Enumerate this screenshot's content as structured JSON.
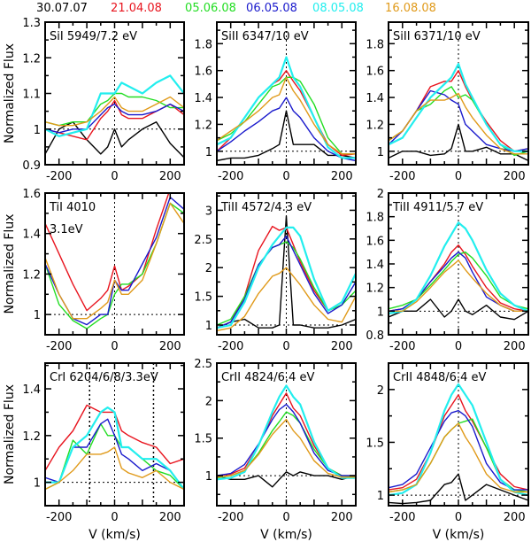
{
  "legend": [
    {
      "label": "30.07.07",
      "color": "#000000"
    },
    {
      "label": "21.04.08",
      "color": "#e8141e"
    },
    {
      "label": "05.06.08",
      "color": "#22dd22"
    },
    {
      "label": "06.05.08",
      "color": "#1a1acc"
    },
    {
      "label": "08.05.08",
      "color": "#22eeee"
    },
    {
      "label": "16.08.08",
      "color": "#e09a1a"
    }
  ],
  "chart_data": {
    "type": "line",
    "ylabel": "Normalized Flux",
    "xlabel": "V (km/s)",
    "xlim": [
      -250,
      250
    ],
    "x_ticks": [
      -200,
      0,
      200
    ],
    "x": [
      -250,
      -200,
      -150,
      -100,
      -50,
      -25,
      0,
      25,
      50,
      100,
      150,
      200,
      250
    ],
    "series_names": [
      "30.07.07",
      "21.04.08",
      "05.06.08",
      "06.05.08",
      "08.05.08",
      "16.08.08"
    ],
    "panels": [
      {
        "label": "SiI 5949/7.2 eV",
        "ylim": [
          0.9,
          1.3
        ],
        "y_ticks": [
          0.9,
          1,
          1.1,
          1.2,
          1.3
        ],
        "series": {
          "30.07.07": [
            0.93,
            1.0,
            1.02,
            0.97,
            0.93,
            0.95,
            1.0,
            0.95,
            0.97,
            1.0,
            1.02,
            0.96,
            0.92
          ],
          "21.04.08": [
            1.0,
            0.99,
            0.98,
            0.97,
            1.03,
            1.05,
            1.08,
            1.04,
            1.03,
            1.03,
            1.05,
            1.07,
            1.04
          ],
          "05.06.08": [
            1.02,
            1.01,
            1.02,
            1.02,
            1.07,
            1.08,
            1.1,
            1.1,
            1.09,
            1.09,
            1.08,
            1.06,
            1.06
          ],
          "06.05.08": [
            1.0,
            0.99,
            1.0,
            1.0,
            1.04,
            1.06,
            1.07,
            1.05,
            1.04,
            1.04,
            1.05,
            1.07,
            1.05
          ],
          "08.05.08": [
            1.0,
            0.98,
            0.99,
            1.0,
            1.1,
            1.1,
            1.1,
            1.13,
            1.12,
            1.1,
            1.13,
            1.15,
            1.1
          ],
          "16.08.08": [
            1.02,
            1.01,
            1.01,
            1.02,
            1.05,
            1.07,
            1.09,
            1.06,
            1.05,
            1.05,
            1.07,
            1.09,
            1.06
          ]
        }
      },
      {
        "label": "SiII 6347/10 eV",
        "ylim": [
          0.9,
          1.96
        ],
        "y_ticks": [
          1,
          1.2,
          1.4,
          1.6,
          1.8
        ],
        "series": {
          "30.07.07": [
            0.93,
            0.95,
            0.95,
            0.97,
            1.02,
            1.05,
            1.3,
            1.05,
            1.05,
            1.05,
            0.97,
            0.97,
            0.95
          ],
          "21.04.08": [
            1.0,
            1.1,
            1.25,
            1.4,
            1.5,
            1.53,
            1.6,
            1.52,
            1.45,
            1.25,
            1.05,
            0.97,
            0.98
          ],
          "05.06.08": [
            1.08,
            1.13,
            1.22,
            1.35,
            1.48,
            1.5,
            1.55,
            1.55,
            1.52,
            1.35,
            1.1,
            0.98,
            0.98
          ],
          "06.05.08": [
            1.0,
            1.07,
            1.15,
            1.22,
            1.3,
            1.32,
            1.4,
            1.3,
            1.25,
            1.1,
            1.0,
            0.95,
            0.93
          ],
          "08.05.08": [
            1.05,
            1.1,
            1.25,
            1.4,
            1.5,
            1.55,
            1.7,
            1.55,
            1.48,
            1.25,
            1.03,
            0.95,
            0.95
          ],
          "16.08.08": [
            1.08,
            1.15,
            1.22,
            1.3,
            1.4,
            1.42,
            1.55,
            1.45,
            1.38,
            1.2,
            1.05,
            0.98,
            0.98
          ]
        }
      },
      {
        "label": "SiII 6371/10 eV",
        "ylim": [
          0.9,
          1.96
        ],
        "y_ticks": [
          1,
          1.2,
          1.4,
          1.6,
          1.8
        ],
        "series": {
          "30.07.07": [
            0.95,
            1.0,
            1.0,
            0.97,
            0.98,
            1.02,
            1.2,
            1.0,
            1.0,
            1.03,
            0.98,
            0.98,
            0.93
          ],
          "21.04.08": [
            1.08,
            1.15,
            1.3,
            1.48,
            1.52,
            1.52,
            1.6,
            1.48,
            1.38,
            1.22,
            1.08,
            1.0,
            1.02
          ],
          "05.06.08": [
            1.08,
            1.15,
            1.3,
            1.35,
            1.45,
            1.48,
            1.4,
            1.42,
            1.38,
            1.2,
            1.05,
            0.97,
            1.0
          ],
          "06.05.08": [
            1.05,
            1.15,
            1.3,
            1.45,
            1.42,
            1.38,
            1.35,
            1.2,
            1.15,
            1.05,
            1.02,
            1.0,
            1.02
          ],
          "08.05.08": [
            1.05,
            1.1,
            1.25,
            1.4,
            1.5,
            1.55,
            1.65,
            1.5,
            1.4,
            1.2,
            1.05,
            1.0,
            1.0
          ],
          "16.08.08": [
            1.08,
            1.15,
            1.3,
            1.38,
            1.38,
            1.4,
            1.43,
            1.33,
            1.25,
            1.12,
            1.02,
            0.98,
            0.98
          ]
        }
      },
      {
        "label": "TiI 4010",
        "sublabel": "3.1eV",
        "ylim": [
          0.9,
          1.6
        ],
        "y_ticks": [
          1,
          1.2,
          1.4,
          1.6
        ],
        "series": {
          "21.04.08": [
            1.45,
            1.3,
            1.15,
            1.02,
            1.08,
            1.12,
            1.24,
            1.12,
            1.14,
            1.2,
            1.42,
            1.62,
            1.62
          ],
          "05.06.08": [
            1.25,
            1.05,
            0.97,
            0.93,
            0.98,
            1.0,
            1.1,
            1.15,
            1.15,
            1.2,
            1.35,
            1.55,
            1.5
          ],
          "06.05.08": [
            1.25,
            1.1,
            0.98,
            0.95,
            1.0,
            1.0,
            1.17,
            1.12,
            1.12,
            1.25,
            1.38,
            1.58,
            1.52
          ],
          "16.08.08": [
            1.28,
            1.1,
            0.98,
            0.98,
            1.03,
            1.06,
            1.17,
            1.1,
            1.1,
            1.17,
            1.35,
            1.55,
            1.45
          ]
        }
      },
      {
        "label": "TiII 4572/4.3 eV",
        "ylim": [
          0.83,
          3.3
        ],
        "y_ticks": [
          1,
          1.5,
          2,
          2.5,
          3
        ],
        "series": {
          "30.07.07": [
            0.95,
            1.05,
            1.1,
            0.95,
            0.95,
            1.0,
            2.9,
            1.0,
            1.0,
            0.95,
            0.95,
            1.0,
            1.1
          ],
          "21.04.08": [
            0.95,
            1.05,
            1.5,
            2.3,
            2.72,
            2.65,
            2.7,
            2.4,
            2.1,
            1.6,
            1.25,
            1.4,
            1.9
          ],
          "05.06.08": [
            1.0,
            1.1,
            1.5,
            2.05,
            2.35,
            2.4,
            2.45,
            2.35,
            2.15,
            1.65,
            1.25,
            1.35,
            1.6
          ],
          "06.05.08": [
            0.95,
            1.05,
            1.45,
            2.05,
            2.35,
            2.4,
            2.55,
            2.3,
            2.05,
            1.55,
            1.2,
            1.35,
            1.75
          ],
          "08.05.08": [
            0.95,
            1.0,
            1.4,
            2.0,
            2.4,
            2.55,
            2.7,
            2.7,
            2.55,
            1.8,
            1.25,
            1.4,
            1.9
          ],
          "16.08.08": [
            0.9,
            0.95,
            1.15,
            1.55,
            1.85,
            1.9,
            2.0,
            1.85,
            1.7,
            1.35,
            1.1,
            1.05,
            1.5
          ]
        }
      },
      {
        "label": "TiII 4911/5.7 eV",
        "ylim": [
          0.8,
          2.0
        ],
        "y_ticks": [
          0.8,
          1,
          1.2,
          1.4,
          1.6,
          1.8,
          2
        ],
        "series": {
          "30.07.07": [
            0.95,
            1.0,
            1.0,
            1.1,
            0.95,
            1.0,
            1.1,
            1.0,
            0.97,
            1.05,
            0.95,
            0.93,
            1.0
          ],
          "21.04.08": [
            1.0,
            1.02,
            1.1,
            1.25,
            1.4,
            1.5,
            1.56,
            1.48,
            1.38,
            1.2,
            1.07,
            1.02,
            1.0
          ],
          "05.06.08": [
            1.02,
            1.05,
            1.1,
            1.22,
            1.35,
            1.42,
            1.48,
            1.5,
            1.45,
            1.3,
            1.12,
            1.05,
            1.02
          ],
          "06.05.08": [
            1.0,
            1.02,
            1.1,
            1.25,
            1.38,
            1.45,
            1.5,
            1.45,
            1.33,
            1.12,
            1.05,
            1.0,
            1.0
          ],
          "08.05.08": [
            0.98,
            1.0,
            1.1,
            1.3,
            1.55,
            1.65,
            1.75,
            1.7,
            1.6,
            1.35,
            1.15,
            1.05,
            1.0
          ],
          "16.08.08": [
            1.0,
            1.0,
            1.08,
            1.2,
            1.33,
            1.38,
            1.43,
            1.35,
            1.28,
            1.15,
            1.05,
            1.0,
            1.0
          ]
        }
      },
      {
        "label": "CrI 6204/6/8/3.3eV",
        "ylim": [
          0.9,
          1.51
        ],
        "y_ticks": [
          1,
          1.2,
          1.4
        ],
        "markers_x": [
          -90,
          140
        ],
        "series": {
          "21.04.08": [
            1.05,
            1.15,
            1.22,
            1.33,
            1.3,
            1.3,
            1.3,
            1.22,
            1.2,
            1.17,
            1.15,
            1.08,
            1.1
          ],
          "05.06.08": [
            0.97,
            1.0,
            1.18,
            1.12,
            1.25,
            1.2,
            1.2,
            1.15,
            1.15,
            1.1,
            1.05,
            1.03,
            0.97
          ],
          "06.05.08": [
            1.02,
            1.0,
            1.15,
            1.15,
            1.25,
            1.27,
            1.2,
            1.12,
            1.1,
            1.05,
            1.08,
            1.05,
            0.97
          ],
          "08.05.08": [
            1.0,
            1.0,
            1.15,
            1.2,
            1.3,
            1.32,
            1.3,
            1.15,
            1.15,
            1.1,
            1.1,
            1.05,
            0.97
          ],
          "16.08.08": [
            0.97,
            1.0,
            1.05,
            1.12,
            1.12,
            1.13,
            1.15,
            1.06,
            1.04,
            1.02,
            1.05,
            1.0,
            0.97
          ]
        }
      },
      {
        "label": "CrII 4824/6.4 eV",
        "ylim": [
          0.6,
          2.5
        ],
        "y_ticks": [
          1,
          1.5,
          2,
          2.5
        ],
        "series": {
          "30.07.07": [
            1.0,
            0.95,
            0.95,
            1.0,
            0.85,
            0.95,
            1.05,
            1.0,
            1.05,
            1.0,
            1.0,
            0.95,
            1.0
          ],
          "21.04.08": [
            1.0,
            1.02,
            1.1,
            1.4,
            1.8,
            1.95,
            2.1,
            1.9,
            1.8,
            1.4,
            1.1,
            1.0,
            1.0
          ],
          "05.06.08": [
            0.97,
            1.0,
            1.07,
            1.3,
            1.6,
            1.72,
            1.85,
            1.8,
            1.7,
            1.35,
            1.1,
            1.0,
            0.98
          ],
          "06.05.08": [
            1.0,
            1.03,
            1.15,
            1.42,
            1.75,
            1.88,
            1.95,
            1.85,
            1.7,
            1.3,
            1.07,
            1.0,
            1.0
          ],
          "08.05.08": [
            0.95,
            0.97,
            1.05,
            1.4,
            1.85,
            2.05,
            2.2,
            2.05,
            1.95,
            1.45,
            1.1,
            0.97,
            0.97
          ],
          "16.08.08": [
            0.98,
            1.0,
            1.07,
            1.28,
            1.55,
            1.65,
            1.75,
            1.6,
            1.5,
            1.2,
            1.03,
            0.98,
            0.98
          ]
        }
      },
      {
        "label": "CrII 4848/6.4 eV",
        "ylim": [
          0.9,
          2.25
        ],
        "y_ticks": [
          1,
          1.5,
          2
        ],
        "series": {
          "30.07.07": [
            0.93,
            0.92,
            0.93,
            0.95,
            1.1,
            1.12,
            1.2,
            0.95,
            1.0,
            1.1,
            1.05,
            1.0,
            0.95
          ],
          "21.04.08": [
            1.05,
            1.07,
            1.15,
            1.4,
            1.75,
            1.85,
            1.95,
            1.8,
            1.7,
            1.45,
            1.2,
            1.08,
            1.05
          ],
          "05.06.08": [
            1.03,
            1.05,
            1.1,
            1.3,
            1.55,
            1.62,
            1.68,
            1.7,
            1.72,
            1.45,
            1.15,
            1.05,
            1.03
          ],
          "06.05.08": [
            1.07,
            1.1,
            1.2,
            1.45,
            1.7,
            1.78,
            1.8,
            1.75,
            1.65,
            1.3,
            1.12,
            1.05,
            1.05
          ],
          "08.05.08": [
            1.0,
            1.02,
            1.1,
            1.4,
            1.8,
            1.95,
            2.05,
            1.95,
            1.85,
            1.5,
            1.15,
            1.03,
            1.0
          ],
          "16.08.08": [
            1.03,
            1.05,
            1.1,
            1.3,
            1.55,
            1.62,
            1.68,
            1.55,
            1.45,
            1.2,
            1.07,
            1.03,
            1.03
          ]
        }
      }
    ]
  }
}
